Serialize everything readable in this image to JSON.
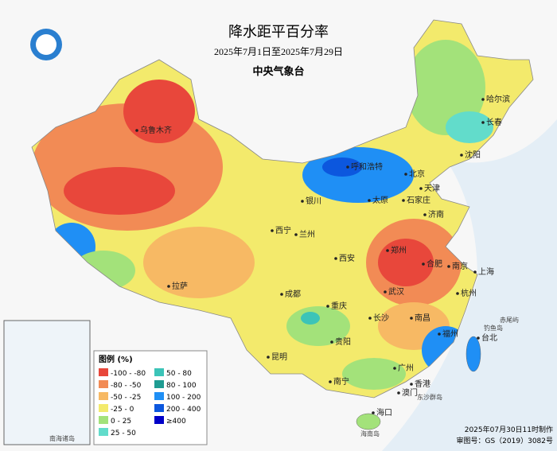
{
  "header": {
    "title": "降水距平百分率",
    "subtitle": "2025年7月1日至2025年7月29日",
    "agency": "中央气象台"
  },
  "legend": {
    "title": "图例 (%)",
    "items": [
      {
        "label": "-100 - -80",
        "color": "#e8473b"
      },
      {
        "label": "-80 - -50",
        "color": "#f28b55"
      },
      {
        "label": "-50 - -25",
        "color": "#f7b964"
      },
      {
        "label": "-25 - 0",
        "color": "#f3ea6c"
      },
      {
        "label": "0 - 25",
        "color": "#a3e27a"
      },
      {
        "label": "25 - 50",
        "color": "#62dccb"
      },
      {
        "label": "50 - 80",
        "color": "#3cc4b8"
      },
      {
        "label": "80 - 100",
        "color": "#1f9c92"
      },
      {
        "label": "100 - 200",
        "color": "#1f8ff5"
      },
      {
        "label": "200 - 400",
        "color": "#0c57de"
      },
      {
        "label": "≥400",
        "color": "#0000c8"
      }
    ]
  },
  "cities": [
    "乌鲁木齐",
    "哈尔滨",
    "长春",
    "沈阳",
    "呼和浩特",
    "北京",
    "天津",
    "银川",
    "太原",
    "石家庄",
    "济南",
    "西宁",
    "兰州",
    "郑州",
    "西安",
    "合肥",
    "南京",
    "上海",
    "拉萨",
    "成都",
    "武汉",
    "杭州",
    "重庆",
    "长沙",
    "南昌",
    "福州",
    "台北",
    "贵阳",
    "昆明",
    "南宁",
    "广州",
    "香港",
    "澳门",
    "海口"
  ],
  "islands": [
    "东沙群岛",
    "赤尾屿",
    "钓鱼岛",
    "海南岛",
    "南海诸岛"
  ],
  "footer": {
    "made": "2025年07月30日11时制作",
    "approval": "审图号：GS（2019）3082号"
  }
}
